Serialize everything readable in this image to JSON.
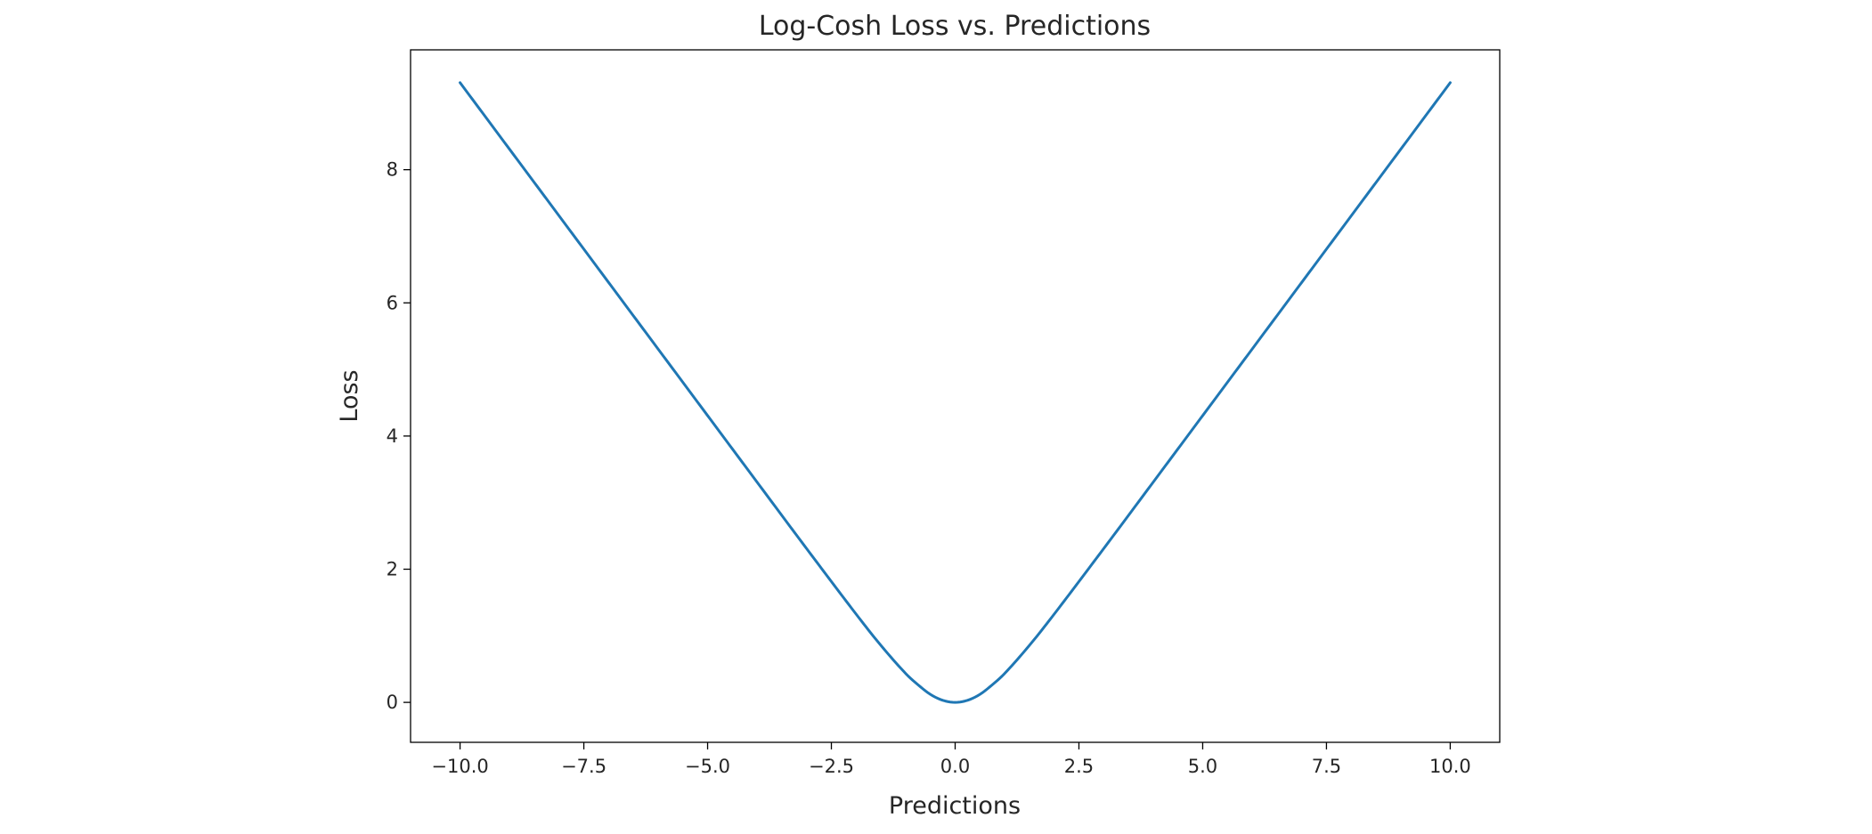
{
  "chart_data": {
    "type": "line",
    "title": "Log-Cosh Loss vs. Predictions",
    "xlabel": "Predictions",
    "ylabel": "Loss",
    "xlim": [
      -11.0,
      11.0
    ],
    "ylim": [
      -0.6,
      9.8
    ],
    "grid": false,
    "line_color": "#1f77b4",
    "x_ticks": [
      -10.0,
      -7.5,
      -5.0,
      -2.5,
      0.0,
      2.5,
      5.0,
      7.5,
      10.0
    ],
    "x_tick_labels": [
      "−10.0",
      "−7.5",
      "−5.0",
      "−2.5",
      "0.0",
      "2.5",
      "5.0",
      "7.5",
      "10.0"
    ],
    "y_ticks": [
      0,
      2,
      4,
      6,
      8
    ],
    "y_tick_labels": [
      "0",
      "2",
      "4",
      "6",
      "8"
    ],
    "series": [
      {
        "x": [
          -10,
          -9,
          -8,
          -7,
          -6,
          -5,
          -4,
          -3,
          -2,
          -1.5,
          -1,
          -0.75,
          -0.5,
          -0.25,
          0,
          0.25,
          0.5,
          0.75,
          1,
          1.5,
          2,
          3,
          4,
          5,
          6,
          7,
          8,
          9,
          10
        ],
        "values": [
          9.307,
          8.307,
          7.307,
          6.307,
          5.307,
          4.307,
          3.307,
          2.309,
          1.325,
          0.856,
          0.434,
          0.264,
          0.12,
          0.031,
          0.0,
          0.031,
          0.12,
          0.264,
          0.434,
          0.856,
          1.325,
          2.309,
          3.307,
          4.307,
          5.307,
          6.307,
          7.307,
          8.307,
          9.307
        ]
      }
    ]
  }
}
